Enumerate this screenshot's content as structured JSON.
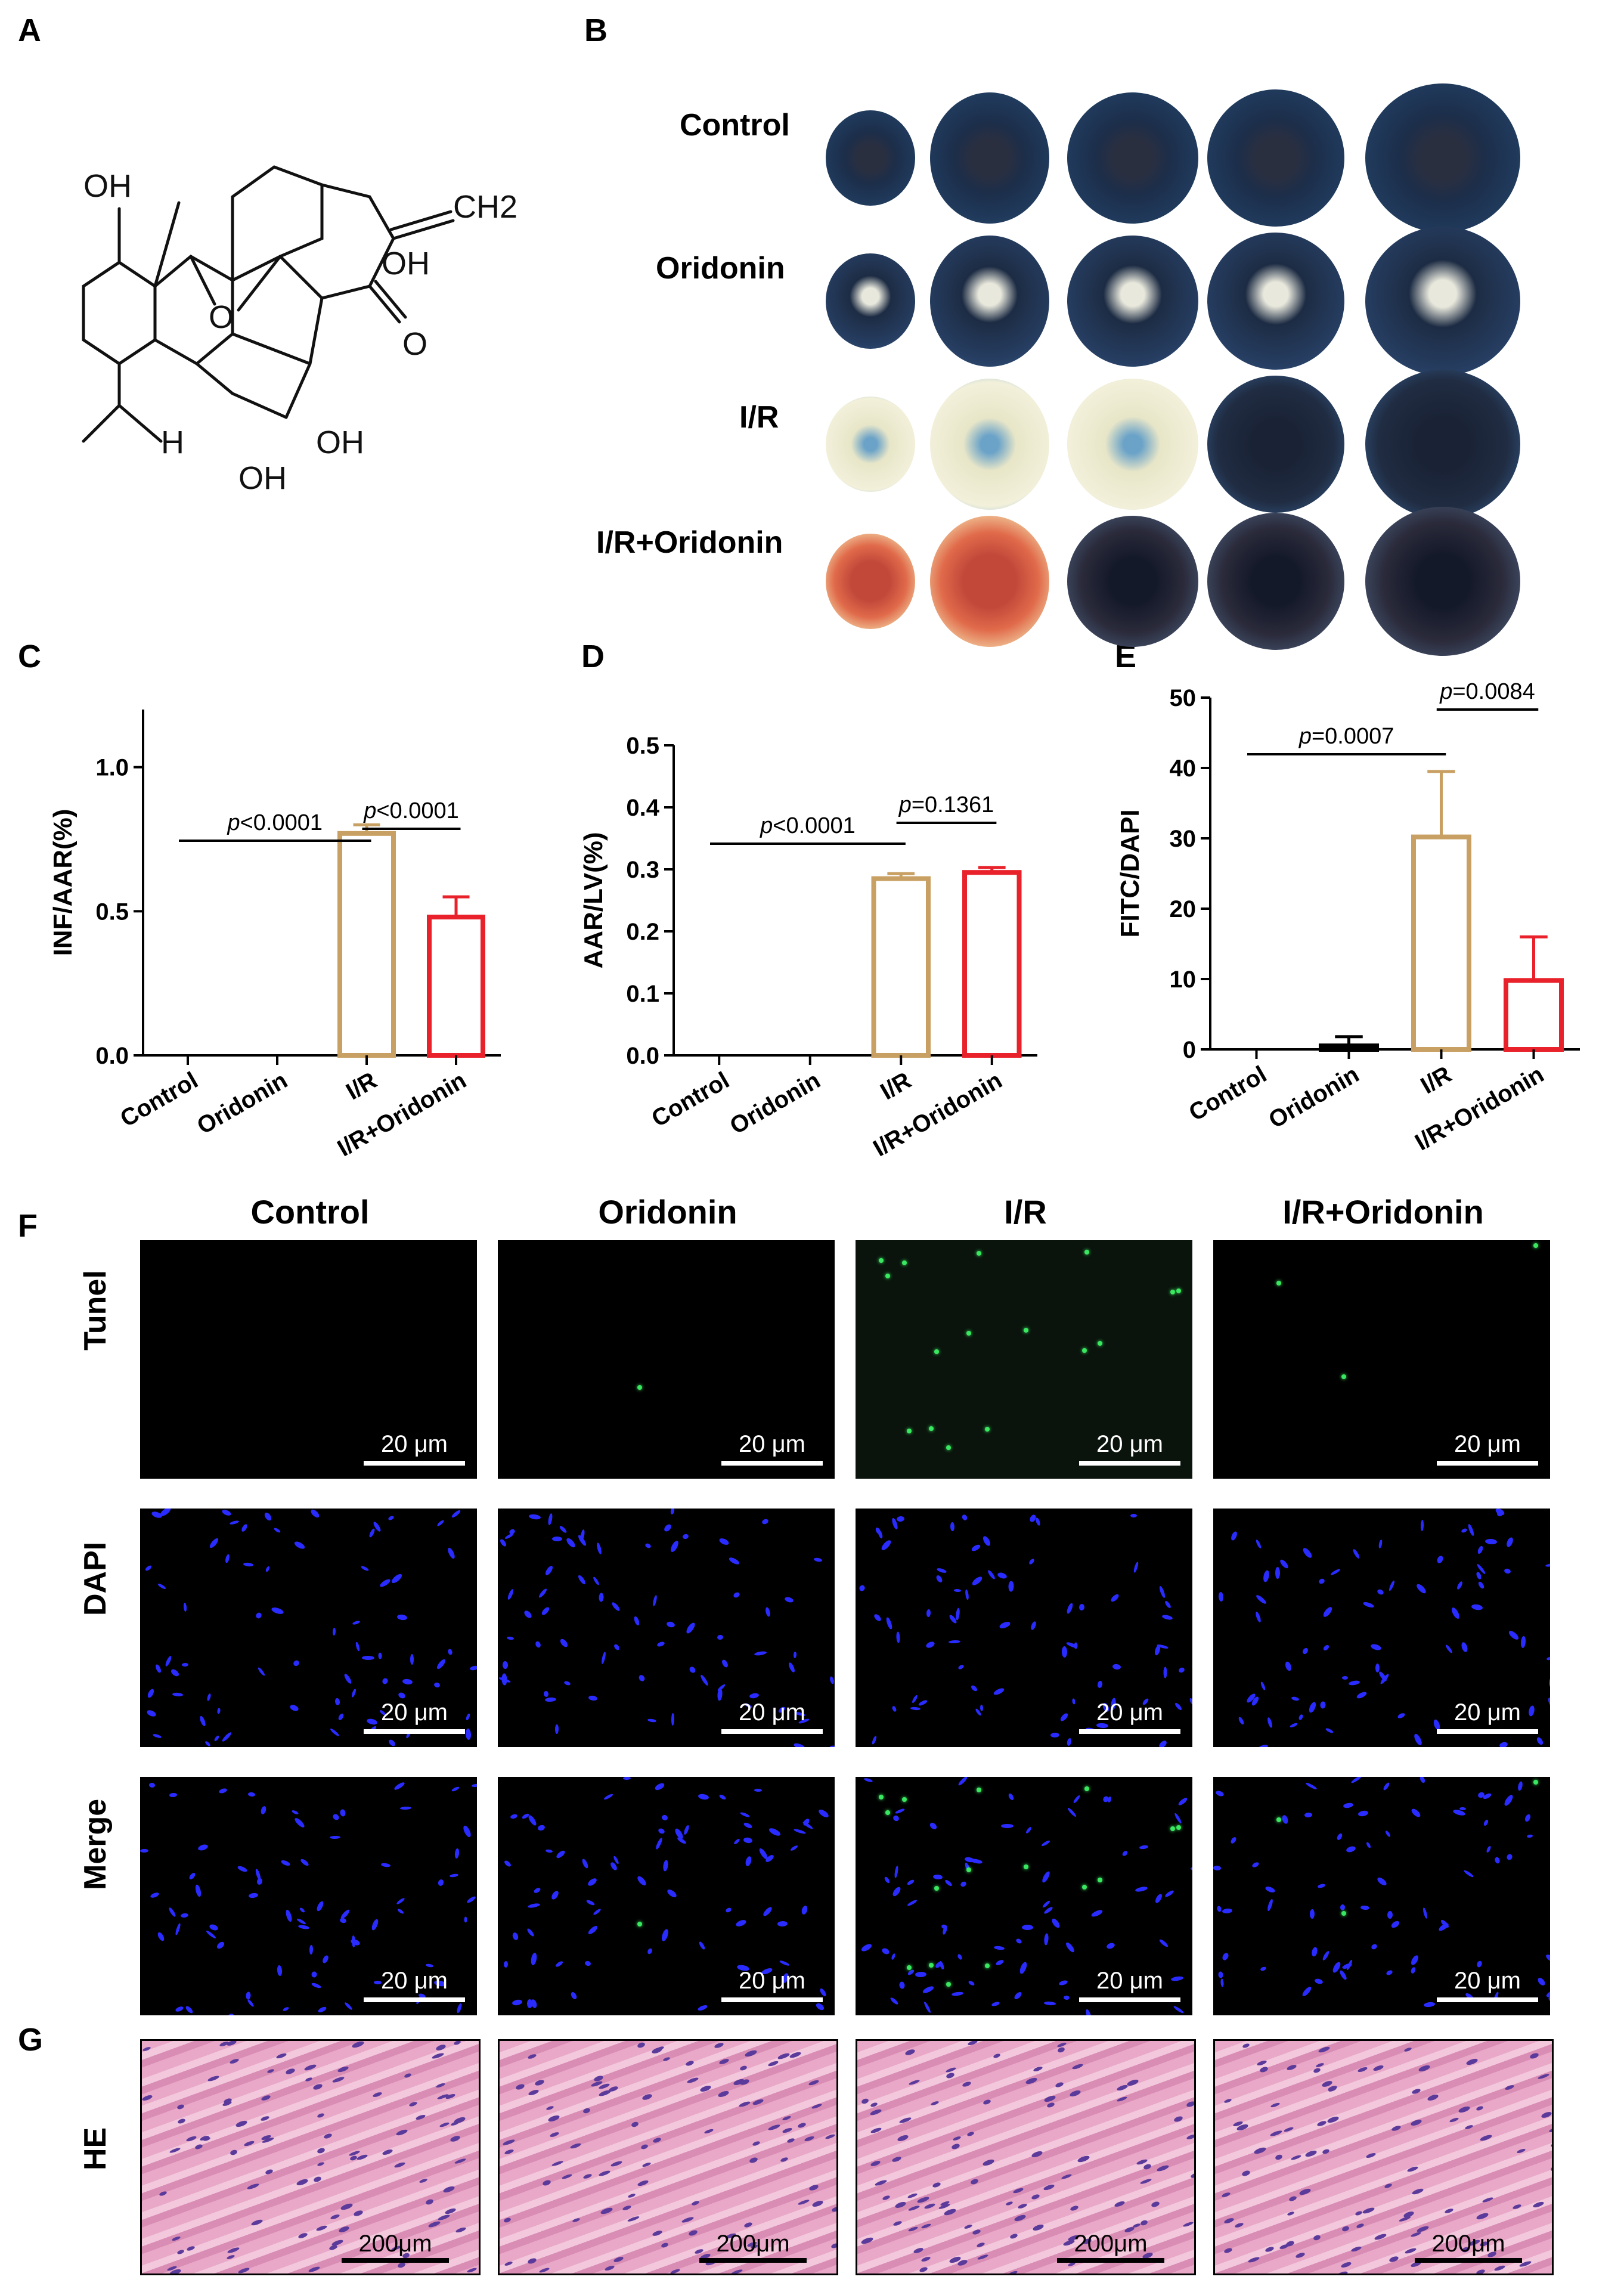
{
  "panels": {
    "A": "A",
    "B": "B",
    "C": "C",
    "D": "D",
    "E": "E",
    "F": "F",
    "G": "G"
  },
  "structure": {
    "labels": [
      "OH",
      "CH2",
      "OH",
      "O",
      "O",
      "OH",
      "H",
      "OH"
    ]
  },
  "hearts": {
    "rows": [
      "Control",
      "Oridonin",
      "I/R",
      "I/R+Oridonin"
    ]
  },
  "chart_data": [
    {
      "type": "bar",
      "panel": "C",
      "categories": [
        "Control",
        "Oridonin",
        "I/R",
        "I/R+Oridonin"
      ],
      "values": [
        0,
        0,
        0.77,
        0.48
      ],
      "errors": [
        0,
        0,
        0.03,
        0.07
      ],
      "ylabel": "INF/AAR(%)",
      "ylim": [
        0,
        1.2
      ],
      "yticks": [
        "0.0",
        "0.5",
        "1.0"
      ],
      "annotations": [
        {
          "text_p": "p",
          "text": "<0.0001",
          "from": 0,
          "to": 2
        },
        {
          "text_p": "p",
          "text": "<0.0001",
          "from": 2,
          "to": 3
        }
      ]
    },
    {
      "type": "bar",
      "panel": "D",
      "categories": [
        "Control",
        "Oridonin",
        "I/R",
        "I/R+Oridonin"
      ],
      "values": [
        0,
        0,
        0.285,
        0.295
      ],
      "errors": [
        0,
        0,
        0.008,
        0.008
      ],
      "ylabel": "AAR/LV(%)",
      "ylim": [
        0,
        0.5
      ],
      "yticks": [
        "0.0",
        "0.1",
        "0.2",
        "0.3",
        "0.4",
        "0.5"
      ],
      "annotations": [
        {
          "text_p": "p",
          "text": "<0.0001",
          "from": 0,
          "to": 2
        },
        {
          "text_p": "p",
          "text": "=0.1361",
          "from": 2,
          "to": 3
        }
      ]
    },
    {
      "type": "bar",
      "panel": "E",
      "categories": [
        "Control",
        "Oridonin",
        "I/R",
        "I/R+Oridonin"
      ],
      "values": [
        0,
        0.5,
        30.2,
        9.8
      ],
      "errors": [
        0,
        1.3,
        9.3,
        6.2
      ],
      "ylabel": "FITC/DAPI",
      "ylim": [
        0,
        50
      ],
      "yticks": [
        "0",
        "10",
        "20",
        "30",
        "40",
        "50"
      ],
      "annotations": [
        {
          "text_p": "p",
          "text": "=0.0007",
          "from": 0,
          "to": 2
        },
        {
          "text_p": "p",
          "text": "=0.0084",
          "from": 2,
          "to": 3
        }
      ]
    }
  ],
  "colors": {
    "ir": "#c9a063",
    "ir_oridonin": "#e8212a",
    "tunel": "#39e860",
    "dapi": "#2a2cff"
  },
  "micro": {
    "columns": [
      "Control",
      "Oridonin",
      "I/R",
      "I/R+Oridonin"
    ],
    "rows": [
      "Tunel",
      "DAPI",
      "Merge"
    ],
    "scale": "20 μm"
  },
  "he": {
    "row": "HE",
    "scale": "200μm"
  }
}
